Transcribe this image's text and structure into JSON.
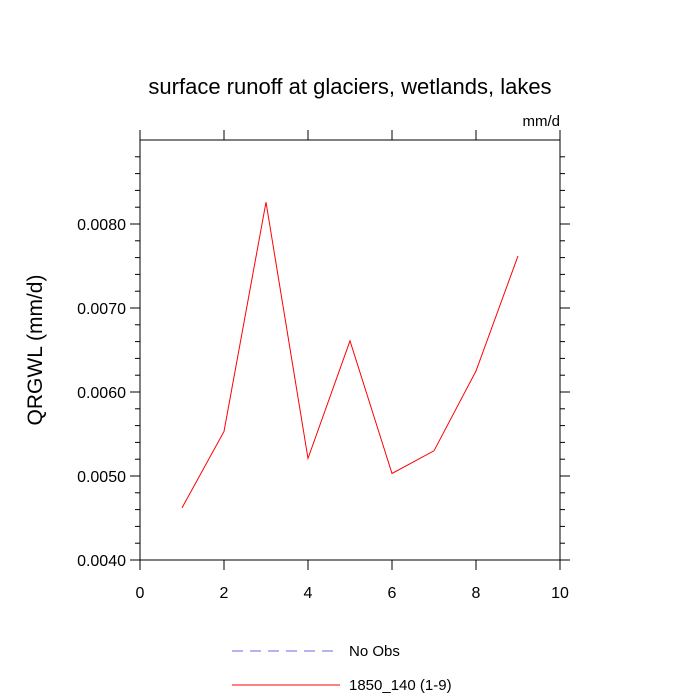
{
  "chart_data": {
    "type": "line",
    "title": "surface runoff at glaciers, wetlands, lakes",
    "units": "mm/d",
    "xlabel": "",
    "ylabel": "QRGWL  (mm/d)",
    "xlim": [
      0,
      10
    ],
    "ylim": [
      0.004,
      0.009
    ],
    "x_ticks": [
      0,
      2,
      4,
      6,
      8,
      10
    ],
    "x_tick_labels": [
      "0",
      "2",
      "4",
      "6",
      "8",
      "10"
    ],
    "y_ticks": [
      0.004,
      0.005,
      0.006,
      0.007,
      0.008
    ],
    "y_tick_labels": [
      "0.0040",
      "0.0050",
      "0.0060",
      "0.0070",
      "0.0080"
    ],
    "grid": false,
    "legend_position": "bottom",
    "series": [
      {
        "name": "No Obs",
        "color": "#6a6ae6",
        "style": "dashed",
        "x": [],
        "y": []
      },
      {
        "name": "1850_140 (1-9)",
        "color": "#ff0000",
        "style": "solid",
        "x": [
          1,
          2,
          3,
          4,
          5,
          6,
          7,
          8,
          9
        ],
        "y": [
          0.00462,
          0.00553,
          0.00826,
          0.00521,
          0.00661,
          0.00503,
          0.0053,
          0.00625,
          0.00762
        ]
      }
    ]
  }
}
